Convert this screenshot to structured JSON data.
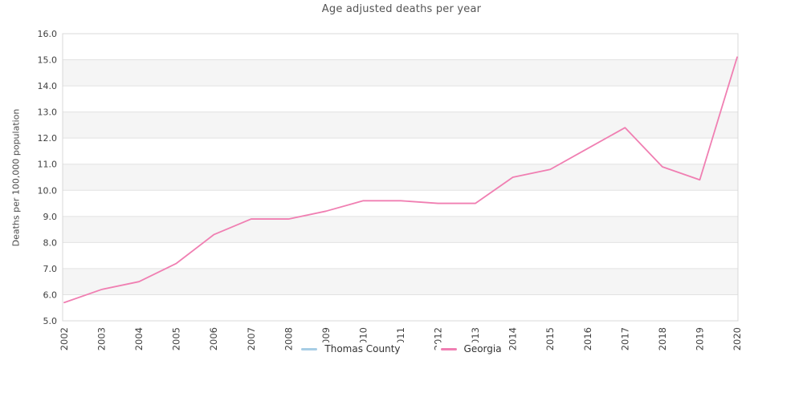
{
  "title": "Age adjusted deaths per year",
  "chart_data": {
    "type": "line",
    "title": "Age adjusted deaths per year",
    "xlabel": "",
    "ylabel": "Deaths per 100,000 population",
    "x": [
      2002,
      2003,
      2004,
      2005,
      2006,
      2007,
      2008,
      2009,
      2010,
      2011,
      2012,
      2013,
      2014,
      2015,
      2016,
      2017,
      2018,
      2019,
      2020
    ],
    "xticks": [
      "2002",
      "2003",
      "2004",
      "2005",
      "2006",
      "2007",
      "2008",
      "2009",
      "2010",
      "2011",
      "2012",
      "2013",
      "2014",
      "2015",
      "2016",
      "2017",
      "2018",
      "2019",
      "2020"
    ],
    "ylim": [
      5.0,
      16.0
    ],
    "ytick_step": 1.0,
    "yticks": [
      "5.0",
      "6.0",
      "7.0",
      "8.0",
      "9.0",
      "10.0",
      "11.0",
      "12.0",
      "13.0",
      "14.0",
      "15.0",
      "16.0"
    ],
    "grid": "horizontal",
    "legend_position": "bottom-center",
    "series": [
      {
        "name": "Thomas County",
        "color": "#a7cde5",
        "values": []
      },
      {
        "name": "Georgia",
        "color": "#f07fb2",
        "values": [
          5.7,
          6.2,
          6.5,
          7.2,
          8.3,
          8.9,
          8.9,
          9.2,
          9.6,
          9.6,
          9.5,
          9.5,
          10.5,
          10.8,
          11.6,
          12.4,
          10.9,
          10.4,
          15.1
        ]
      }
    ],
    "style": {
      "band_fill": "#f5f5f5",
      "grid_color": "#e2e2e2",
      "border_color": "#d8d8d8",
      "tick_color": "#3f3f3f",
      "title_color": "#545454",
      "ylabel_color": "#4a4a4a",
      "background": "#ffffff"
    }
  }
}
